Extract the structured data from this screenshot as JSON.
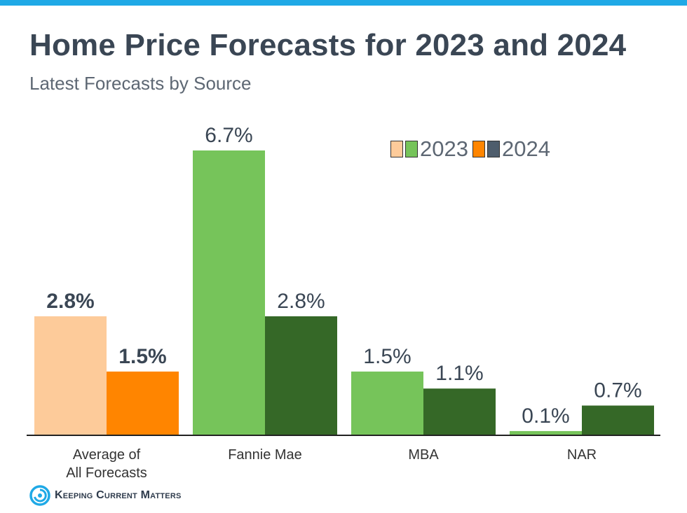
{
  "title": "Home Price Forecasts for 2023 and 2024",
  "subtitle": "Latest Forecasts by Source",
  "legend": {
    "label_2023": "2023",
    "label_2024": "2024"
  },
  "logo": {
    "text": "Keeping Current Matters"
  },
  "colors": {
    "top_bar": "#1fa9e6",
    "avg_2023": "#fdcb9a",
    "avg_2024": "#ff8500",
    "source_2023": "#76c45a",
    "source_2024": "#356827",
    "axis": "#222222",
    "label": "#3a4654",
    "logo_blue": "#1fa9e6"
  },
  "chart_data": {
    "type": "bar",
    "title": "Home Price Forecasts for 2023 and 2024",
    "subtitle": "Latest Forecasts by Source",
    "categories": [
      [
        "Average of",
        "All Forecasts"
      ],
      [
        "Fannie Mae"
      ],
      [
        "MBA"
      ],
      [
        "NAR"
      ]
    ],
    "series": [
      {
        "name": "2023",
        "values": [
          2.8,
          6.7,
          1.5,
          0.1
        ],
        "labels": [
          "2.8%",
          "6.7%",
          "1.5%",
          "0.1%"
        ]
      },
      {
        "name": "2024",
        "values": [
          1.5,
          2.8,
          1.1,
          0.7
        ],
        "labels": [
          "1.5%",
          "2.8%",
          "1.1%",
          "0.7%"
        ]
      }
    ],
    "ylim": [
      0,
      6.7
    ],
    "xlabel": "",
    "ylabel": "",
    "grid": false,
    "legend_position": "top-right"
  }
}
